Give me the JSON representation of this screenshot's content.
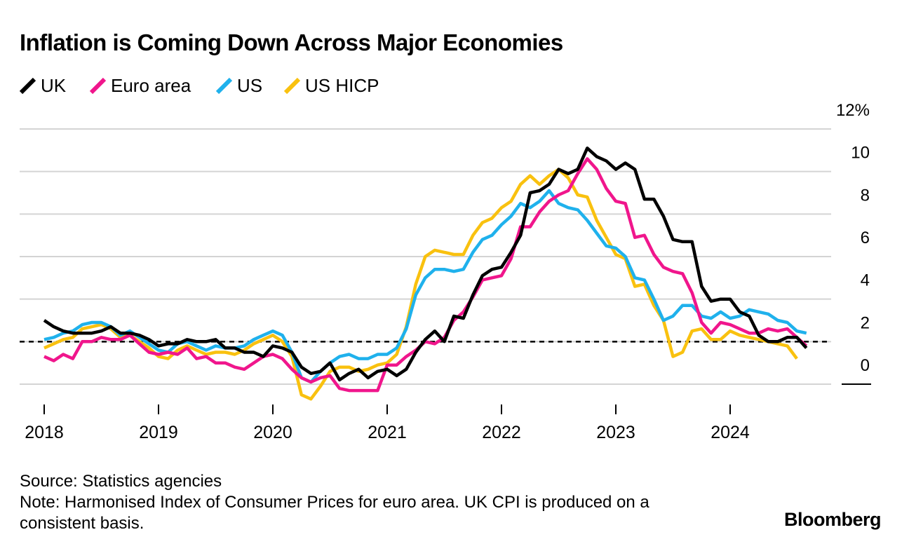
{
  "chart_data": {
    "type": "line",
    "title": "Inflation is Coming Down Across Major Economies",
    "source": "Source: Statistics agencies",
    "note": "Note: Harmonised Index of Consumer Prices for euro area. UK CPI is produced on a consistent basis.",
    "brand": "Bloomberg",
    "categories": [
      "2018",
      null,
      null,
      null,
      null,
      null,
      null,
      null,
      null,
      null,
      null,
      null,
      "2019",
      null,
      null,
      null,
      null,
      null,
      null,
      null,
      null,
      null,
      null,
      null,
      "2020",
      null,
      null,
      null,
      null,
      null,
      null,
      null,
      null,
      null,
      null,
      null,
      "2021",
      null,
      null,
      null,
      null,
      null,
      null,
      null,
      null,
      null,
      null,
      null,
      "2022",
      null,
      null,
      null,
      null,
      null,
      null,
      null,
      null,
      null,
      null,
      null,
      "2023",
      null,
      null,
      null,
      null,
      null,
      null,
      null,
      null,
      null,
      null,
      null,
      "2024",
      null,
      null,
      null,
      null,
      null,
      null,
      null,
      null
    ],
    "series": [
      {
        "name": "UK",
        "color": "#000000",
        "values": [
          3.0,
          2.7,
          2.5,
          2.4,
          2.4,
          2.4,
          2.5,
          2.7,
          2.4,
          2.4,
          2.3,
          2.1,
          1.8,
          1.9,
          1.9,
          2.1,
          2.0,
          2.0,
          2.1,
          1.7,
          1.7,
          1.5,
          1.5,
          1.3,
          1.8,
          1.7,
          1.5,
          0.8,
          0.5,
          0.6,
          1.0,
          0.2,
          0.5,
          0.7,
          0.3,
          0.6,
          0.7,
          0.4,
          0.7,
          1.5,
          2.1,
          2.5,
          2.0,
          3.2,
          3.1,
          4.2,
          5.1,
          5.4,
          5.5,
          6.2,
          7.0,
          9.0,
          9.1,
          9.4,
          10.1,
          9.9,
          10.1,
          11.1,
          10.7,
          10.5,
          10.1,
          10.4,
          10.1,
          8.7,
          8.7,
          7.9,
          6.8,
          6.7,
          6.7,
          4.6,
          3.9,
          4.0,
          4.0,
          3.4,
          3.2,
          2.3,
          2.0,
          2.0,
          2.2,
          2.2,
          1.7
        ]
      },
      {
        "name": "Euro area",
        "color": "#f0168c",
        "values": [
          1.3,
          1.1,
          1.4,
          1.2,
          2.0,
          2.0,
          2.2,
          2.1,
          2.1,
          2.3,
          1.9,
          1.5,
          1.4,
          1.5,
          1.4,
          1.7,
          1.2,
          1.3,
          1.0,
          1.0,
          0.8,
          0.7,
          1.0,
          1.3,
          1.4,
          1.2,
          0.7,
          0.3,
          0.1,
          0.3,
          0.4,
          -0.2,
          -0.3,
          -0.3,
          -0.3,
          -0.3,
          0.9,
          0.9,
          1.3,
          1.6,
          2.0,
          1.9,
          2.2,
          3.0,
          3.4,
          4.1,
          4.9,
          5.0,
          5.1,
          5.9,
          7.4,
          7.4,
          8.1,
          8.6,
          8.9,
          9.1,
          9.9,
          10.6,
          10.1,
          9.2,
          8.6,
          8.5,
          6.9,
          7.0,
          6.1,
          5.5,
          5.3,
          5.2,
          4.3,
          2.9,
          2.4,
          2.9,
          2.8,
          2.6,
          2.4,
          2.4,
          2.6,
          2.5,
          2.6,
          2.2,
          1.8
        ]
      },
      {
        "name": "US",
        "color": "#1fb1ec",
        "values": [
          2.1,
          2.2,
          2.4,
          2.5,
          2.8,
          2.9,
          2.9,
          2.7,
          2.3,
          2.5,
          2.2,
          1.9,
          1.6,
          1.5,
          1.9,
          2.0,
          1.8,
          1.6,
          1.8,
          1.7,
          1.7,
          1.8,
          2.1,
          2.3,
          2.5,
          2.3,
          1.5,
          0.3,
          0.1,
          0.6,
          1.0,
          1.3,
          1.4,
          1.2,
          1.2,
          1.4,
          1.4,
          1.7,
          2.6,
          4.2,
          5.0,
          5.4,
          5.4,
          5.3,
          5.4,
          6.2,
          6.8,
          7.0,
          7.5,
          7.9,
          8.5,
          8.3,
          8.6,
          9.1,
          8.5,
          8.3,
          8.2,
          7.7,
          7.1,
          6.5,
          6.4,
          6.0,
          5.0,
          4.9,
          4.0,
          3.0,
          3.2,
          3.7,
          3.7,
          3.2,
          3.1,
          3.4,
          3.1,
          3.2,
          3.5,
          3.4,
          3.3,
          3.0,
          2.9,
          2.5,
          2.4
        ]
      },
      {
        "name": "US HICP",
        "color": "#f9c10f",
        "values": [
          1.7,
          1.9,
          2.1,
          2.2,
          2.6,
          2.7,
          2.8,
          2.6,
          2.2,
          2.3,
          2.0,
          1.7,
          1.3,
          1.2,
          1.6,
          1.8,
          1.6,
          1.4,
          1.5,
          1.5,
          1.4,
          1.6,
          1.9,
          2.1,
          2.3,
          2.0,
          1.3,
          -0.5,
          -0.7,
          -0.1,
          0.6,
          0.8,
          0.8,
          0.6,
          0.7,
          0.9,
          1.0,
          1.4,
          2.7,
          4.7,
          6.0,
          6.3,
          6.2,
          6.1,
          6.1,
          7.0,
          7.6,
          7.8,
          8.3,
          8.6,
          9.4,
          9.8,
          9.4,
          9.8,
          10.1,
          9.7,
          8.9,
          8.8,
          7.7,
          6.9,
          6.1,
          5.9,
          4.6,
          4.7,
          3.7,
          3.0,
          1.3,
          1.5,
          2.5,
          2.6,
          2.1,
          2.1,
          2.5,
          2.3,
          2.2,
          2.1,
          2.0,
          1.9,
          1.8,
          1.2,
          null
        ]
      }
    ],
    "ylim": [
      -1,
      12
    ],
    "yticks": [
      0,
      2,
      4,
      6,
      8,
      10,
      {
        "value": 12,
        "label": "12%"
      }
    ],
    "reference_line": 2,
    "grid": true
  }
}
